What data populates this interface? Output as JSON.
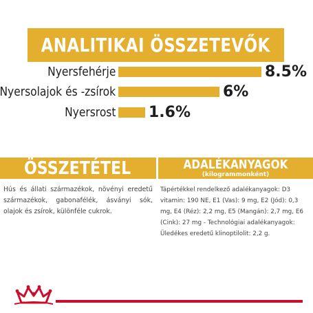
{
  "banner": {
    "title": "ANALITIKAI ÖSSZETEVŐK"
  },
  "analytics": [
    {
      "label": "Nyersfehérje",
      "value": "8.5%",
      "percent": 8.5
    },
    {
      "label": "Nyersolajok és -zsírok",
      "value": "6%",
      "percent": 6
    },
    {
      "label": "Nyersrost",
      "value": "1.6%",
      "percent": 1.6
    }
  ],
  "composition": {
    "title": "ÖSSZETÉTEL",
    "text": "Hús és állati származékok, növényi eredetű származékok, gabonafélék, ásványi sók, olajok és zsírok, különféle cukrok."
  },
  "additives": {
    "title": "ADALÉKANYAGOK",
    "subtitle": "(kilogrammonként)",
    "text": "Tápértékkel rendelkező adalékanyagok: D3 vitamin: 190 NE, E1 (Vas): 9 mg, E2 (Jód): 0,3 mg, E4 (Réz): 2,2 mg, E5 (Mangán): 2,7 mg, E6 (Cink): 27 mg - Technológiai adalékanyagok: Üledékes eredetű klinoptilolit: 2,2 g."
  },
  "colors": {
    "accent": "#e4ae2e",
    "brand": "#c8102e",
    "text": "#1e1e1e"
  },
  "logo": {
    "icon": "crown-icon"
  }
}
